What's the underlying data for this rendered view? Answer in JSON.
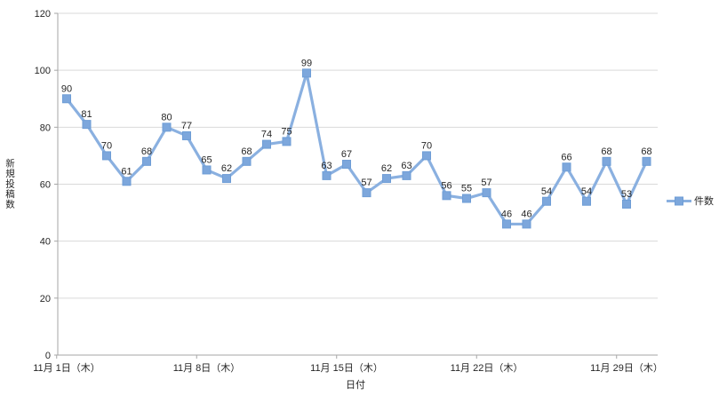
{
  "chart_data": {
    "type": "line",
    "title": "",
    "series": [
      {
        "name": "件数",
        "values": [
          90,
          81,
          70,
          61,
          68,
          80,
          77,
          65,
          62,
          68,
          74,
          75,
          99,
          63,
          67,
          57,
          62,
          63,
          70,
          56,
          55,
          57,
          46,
          46,
          54,
          66,
          54,
          68,
          53,
          68
        ]
      }
    ],
    "x_tick_labels": [
      "11月 1日（木）",
      "11月 8日（木）",
      "11月 15日（木）",
      "11月 22日（木）",
      "11月 29日（木）"
    ],
    "x_tick_indices": [
      0,
      7,
      14,
      21,
      28
    ],
    "xlabel": "日付",
    "ylabel": "新規投稿数",
    "ylim": [
      0,
      120
    ],
    "y_tick_step": 20,
    "grid": true,
    "legend_position": "right",
    "marker": "square",
    "colors": {
      "series": "#7DA7DC",
      "marker_edge": "#6E9DD6",
      "line": "#8AB0E0",
      "gridline": "#D9D9D9",
      "axis": "#A6A6A6",
      "text": "#262626"
    }
  }
}
